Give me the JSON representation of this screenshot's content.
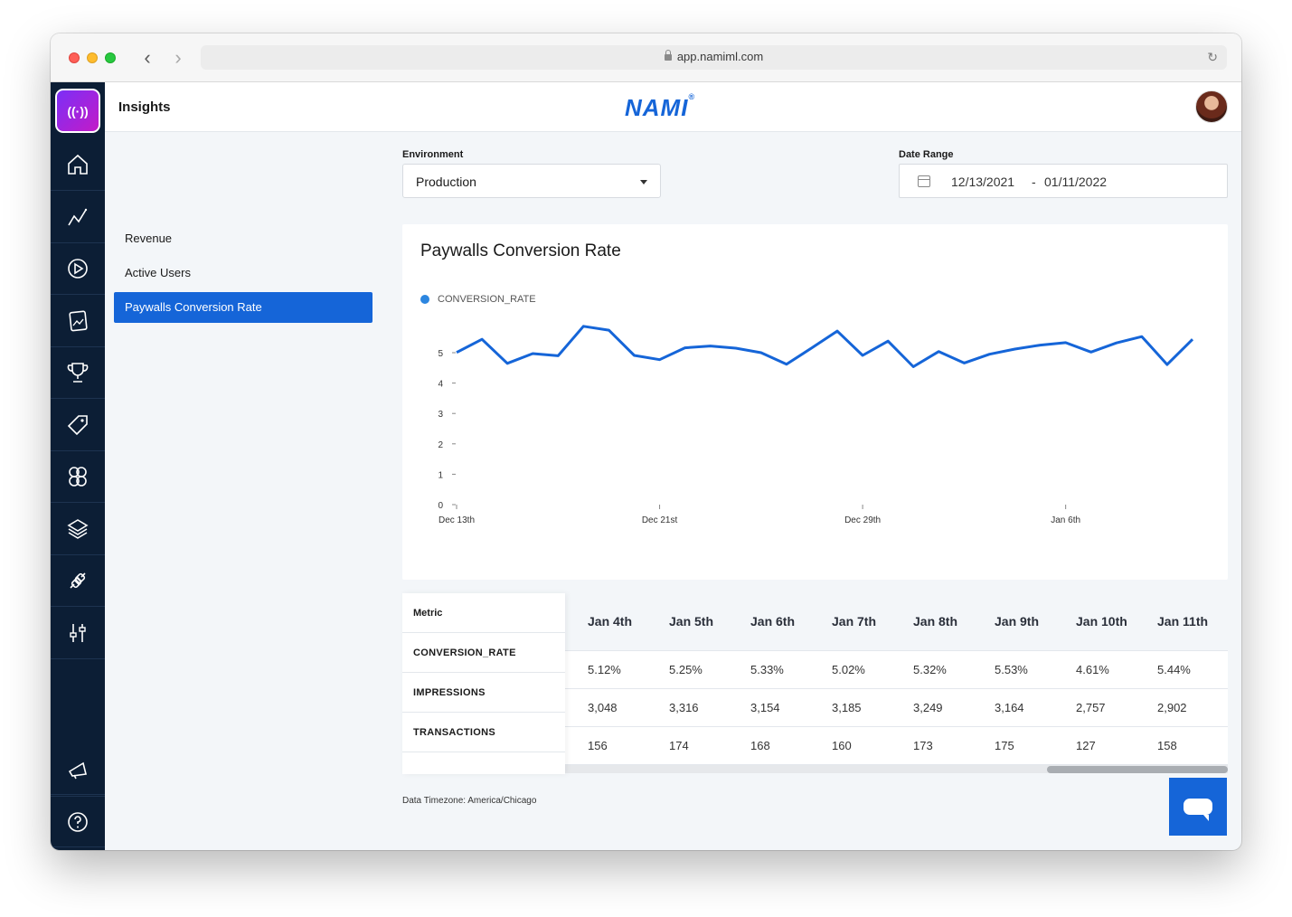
{
  "browser": {
    "url": "app.namiml.com"
  },
  "app": {
    "page_title": "Insights",
    "brand": "NAMI",
    "brand_mark": "®",
    "logo_glyph": "((·))"
  },
  "sidebar": {
    "items": [
      {
        "icon": "home-icon"
      },
      {
        "icon": "analytics-icon"
      },
      {
        "icon": "play-icon"
      },
      {
        "icon": "paywall-icon"
      },
      {
        "icon": "trophy-icon"
      },
      {
        "icon": "tag-icon"
      },
      {
        "icon": "users-icon"
      },
      {
        "icon": "layers-icon"
      },
      {
        "icon": "integrations-icon"
      },
      {
        "icon": "settings-sliders-icon"
      }
    ],
    "bottom": [
      {
        "icon": "announcements-icon"
      },
      {
        "icon": "help-icon"
      }
    ]
  },
  "submenu": {
    "items": [
      {
        "label": "Revenue",
        "active": false
      },
      {
        "label": "Active Users",
        "active": false
      },
      {
        "label": "Paywalls Conversion Rate",
        "active": true
      }
    ]
  },
  "filters": {
    "environment_label": "Environment",
    "environment_value": "Production",
    "date_range_label": "Date Range",
    "date_start": "12/13/2021",
    "date_separator": "-",
    "date_end": "01/11/2022"
  },
  "chart_data": {
    "type": "line",
    "title": "Paywalls Conversion Rate",
    "legend_position": "top-left",
    "ylim": [
      0,
      5
    ],
    "yticks": [
      0,
      1,
      2,
      3,
      4,
      5
    ],
    "xtick_labels": [
      "Dec 13th",
      "Dec 21st",
      "Dec 29th",
      "Jan 6th"
    ],
    "series": [
      {
        "name": "CONVERSION_RATE",
        "color": "#1565d8",
        "x": [
          "2021-12-13",
          "2021-12-14",
          "2021-12-15",
          "2021-12-16",
          "2021-12-17",
          "2021-12-18",
          "2021-12-19",
          "2021-12-20",
          "2021-12-21",
          "2021-12-22",
          "2021-12-23",
          "2021-12-24",
          "2021-12-25",
          "2021-12-26",
          "2021-12-27",
          "2021-12-28",
          "2021-12-29",
          "2021-12-30",
          "2021-12-31",
          "2022-01-01",
          "2022-01-02",
          "2022-01-03",
          "2022-01-04",
          "2022-01-05",
          "2022-01-06",
          "2022-01-07",
          "2022-01-08",
          "2022-01-09",
          "2022-01-10",
          "2022-01-11"
        ],
        "values": [
          5.01,
          5.44,
          4.65,
          4.97,
          4.9,
          5.87,
          5.74,
          4.91,
          4.77,
          5.16,
          5.22,
          5.15,
          5.0,
          4.62,
          5.16,
          5.71,
          4.91,
          5.38,
          4.54,
          5.04,
          4.66,
          4.95,
          5.12,
          5.25,
          5.33,
          5.02,
          5.32,
          5.53,
          4.61,
          5.44
        ]
      }
    ]
  },
  "table": {
    "metric_header": "Metric",
    "metrics": [
      "CONVERSION_RATE",
      "IMPRESSIONS",
      "TRANSACTIONS"
    ],
    "columns": [
      "Jan 4th",
      "Jan 5th",
      "Jan 6th",
      "Jan 7th",
      "Jan 8th",
      "Jan 9th",
      "Jan 10th",
      "Jan 11th"
    ],
    "rows": [
      [
        "5.12%",
        "5.25%",
        "5.33%",
        "5.02%",
        "5.32%",
        "5.53%",
        "4.61%",
        "5.44%"
      ],
      [
        "3,048",
        "3,316",
        "3,154",
        "3,185",
        "3,249",
        "3,164",
        "2,757",
        "2,902"
      ],
      [
        "156",
        "174",
        "168",
        "160",
        "173",
        "175",
        "127",
        "158"
      ]
    ]
  },
  "footer": {
    "timezone_note": "Data Timezone: America/Chicago"
  },
  "chat": {
    "icon": "chat-icon"
  }
}
